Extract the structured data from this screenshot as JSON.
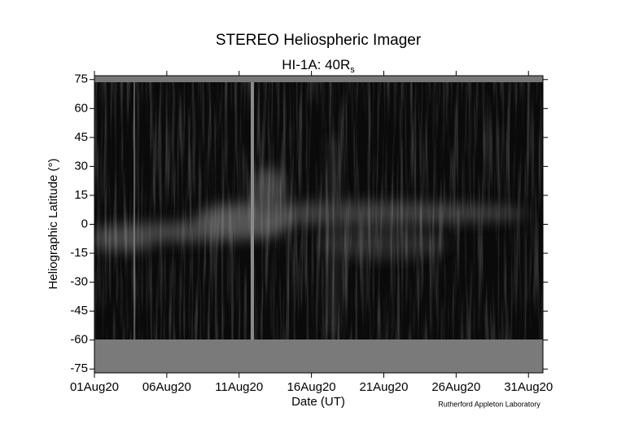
{
  "chart_data": {
    "type": "heatmap",
    "title": "STEREO Heliospheric Imager",
    "subtitle": {
      "text": "HI-1A: 40R",
      "subscript": "s"
    },
    "x_label": "Date (UT)",
    "y_label": "Heliographic Latitude (°)",
    "credit": "Rutherford Appleton Laboratory",
    "xlim": [
      1,
      32
    ],
    "xticks": [
      {
        "value": 1,
        "label": "01Aug20"
      },
      {
        "value": 6,
        "label": "06Aug20"
      },
      {
        "value": 11,
        "label": "11Aug20"
      },
      {
        "value": 16,
        "label": "16Aug20"
      },
      {
        "value": 21,
        "label": "21Aug20"
      },
      {
        "value": 26,
        "label": "26Aug20"
      },
      {
        "value": 31,
        "label": "31Aug20"
      }
    ],
    "ylim": [
      -77,
      77
    ],
    "yticks": [
      -75,
      -60,
      -45,
      -30,
      -15,
      0,
      15,
      30,
      45,
      60,
      75
    ]
  }
}
